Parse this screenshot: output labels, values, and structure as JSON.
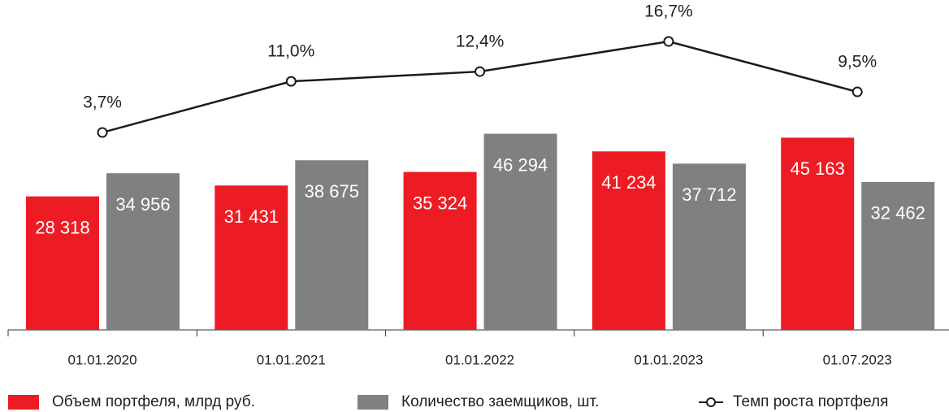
{
  "chart_data": {
    "type": "bar",
    "categories": [
      "01.01.2020",
      "01.01.2021",
      "01.01.2022",
      "01.01.2023",
      "01.07.2023"
    ],
    "series": [
      {
        "name": "Объем портфеля, млрд руб.",
        "color": "#ed1c24",
        "values": [
          28318,
          31431,
          35324,
          41234,
          45163
        ],
        "value_labels": [
          "28 318",
          "31 431",
          "35 324",
          "41 234",
          "45 163"
        ]
      },
      {
        "name": "Количество заемщиков, шт.",
        "color": "#808083",
        "values": [
          34956,
          38675,
          46294,
          37712,
          32462
        ],
        "value_labels": [
          "34 956",
          "38 675",
          "46 294",
          "37 712",
          "32 462"
        ]
      },
      {
        "name": "Темп роста портфеля",
        "type": "line",
        "axis": "y2",
        "color": "#1a1a1a",
        "values": [
          3.7,
          11.0,
          12.4,
          16.7,
          9.5
        ],
        "value_labels": [
          "3,7%",
          "11,0%",
          "12,4%",
          "16,7%",
          "9,5%"
        ]
      }
    ],
    "ylim": [
      -10000,
      80000
    ],
    "y2lim": [
      -24.5,
      20.3
    ]
  }
}
